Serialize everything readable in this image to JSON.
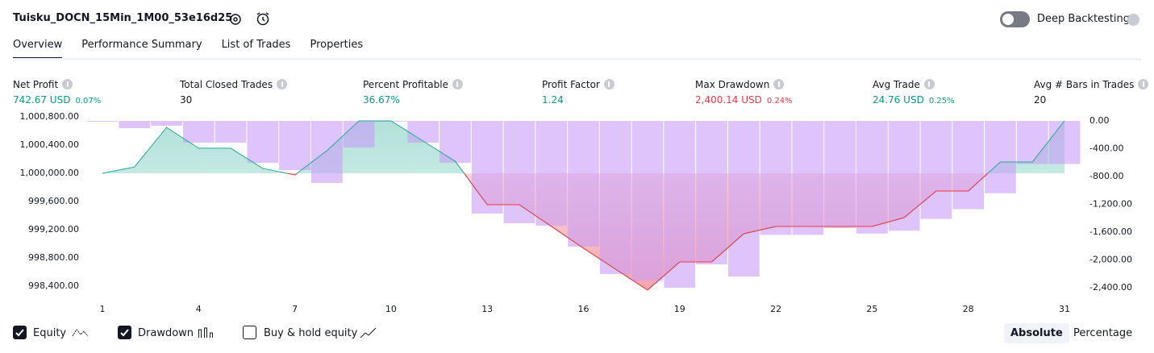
{
  "header": {
    "title": "Tuisku_DOCN_15Min_1M00_53e16d25",
    "deep_backtesting": "Deep Backtesting"
  },
  "tabs": [
    "Overview",
    "Performance Summary",
    "List of Trades",
    "Properties"
  ],
  "metrics": [
    {
      "label": "Net Profit",
      "value": "742.67 USD",
      "percent": "0.07%",
      "color": "#089981"
    },
    {
      "label": "Total Closed Trades",
      "value": "30",
      "color": "#131722"
    },
    {
      "label": "Percent Profitable",
      "value": "36.67%",
      "color": "#089981"
    },
    {
      "label": "Profit Factor",
      "value": "1.24",
      "color": "#089981"
    },
    {
      "label": "Max Drawdown",
      "value": "2,400.14 USD",
      "percent": "0.24%",
      "color": "#f23645"
    },
    {
      "label": "Avg Trade",
      "value": "24.76 USD",
      "percent": "0.25%",
      "color": "#089981"
    },
    {
      "label": "Avg # Bars in Trades",
      "value": "20",
      "color": "#131722"
    }
  ],
  "chart_data": {
    "type": "combo",
    "x": [
      1,
      2,
      3,
      4,
      5,
      6,
      7,
      8,
      9,
      10,
      11,
      12,
      13,
      14,
      15,
      16,
      17,
      18,
      19,
      20,
      21,
      22,
      23,
      24,
      25,
      26,
      27,
      28,
      29,
      30,
      31
    ],
    "xlim": [
      1,
      31
    ],
    "xticks": [
      1,
      4,
      7,
      10,
      13,
      16,
      19,
      22,
      25,
      28,
      31
    ],
    "series": [
      {
        "name": "Equity",
        "type": "line",
        "color": "#22ab94",
        "values": [
          1000000,
          1000090,
          1000650,
          1000355,
          1000355,
          1000069,
          999977,
          1000320,
          1000743,
          1000743,
          1000457,
          1000171,
          999554,
          999554,
          999246,
          998937,
          998640,
          998343,
          998743,
          998743,
          999143,
          999246,
          999246,
          999246,
          999246,
          999371,
          999749,
          999749,
          1000160,
          1000160,
          1000743
        ]
      },
      {
        "name": "Drawdown",
        "type": "bar",
        "axis": "y2",
        "color": "#c89cf7",
        "values": [
          0,
          -104,
          -70,
          -313,
          -313,
          -603,
          -707,
          -893,
          -383,
          0,
          -313,
          -603,
          -1333,
          -1472,
          -1507,
          -1809,
          -2203,
          -2300,
          -2400,
          -2065,
          -2240,
          -1640,
          -1640,
          -1540,
          -1620,
          -1580,
          -1410,
          -1270,
          -1040,
          -620,
          -620
        ]
      }
    ],
    "ylim": [
      998320,
      1000834
    ],
    "yticks": [
      {
        "value": 1000800,
        "label": "1,000,800.00"
      },
      {
        "value": 1000400,
        "label": "1,000,400.00"
      },
      {
        "value": 1000000,
        "label": "1,000,000.00"
      },
      {
        "value": 999600,
        "label": "999,600.00"
      },
      {
        "value": 999200,
        "label": "999,200.00"
      },
      {
        "value": 998800,
        "label": "998,800.00"
      },
      {
        "value": 998400,
        "label": "998,400.00"
      }
    ],
    "y2lim": [
      -2458,
      93
    ],
    "y2ticks": [
      {
        "value": 0,
        "label": "0.00"
      },
      {
        "value": -400,
        "label": "-400.00"
      },
      {
        "value": -800,
        "label": "-800.00"
      },
      {
        "value": -1200,
        "label": "-1,200.00"
      },
      {
        "value": -1600,
        "label": "-1,600.00"
      },
      {
        "value": -2000,
        "label": "-2,000.00"
      },
      {
        "value": -2400,
        "label": "-2,400.00"
      }
    ],
    "below_color": "#f23645"
  },
  "footer": {
    "buy_hold": "Buy & hold equity",
    "absolute": "Absolute",
    "percentage": "Percentage"
  }
}
